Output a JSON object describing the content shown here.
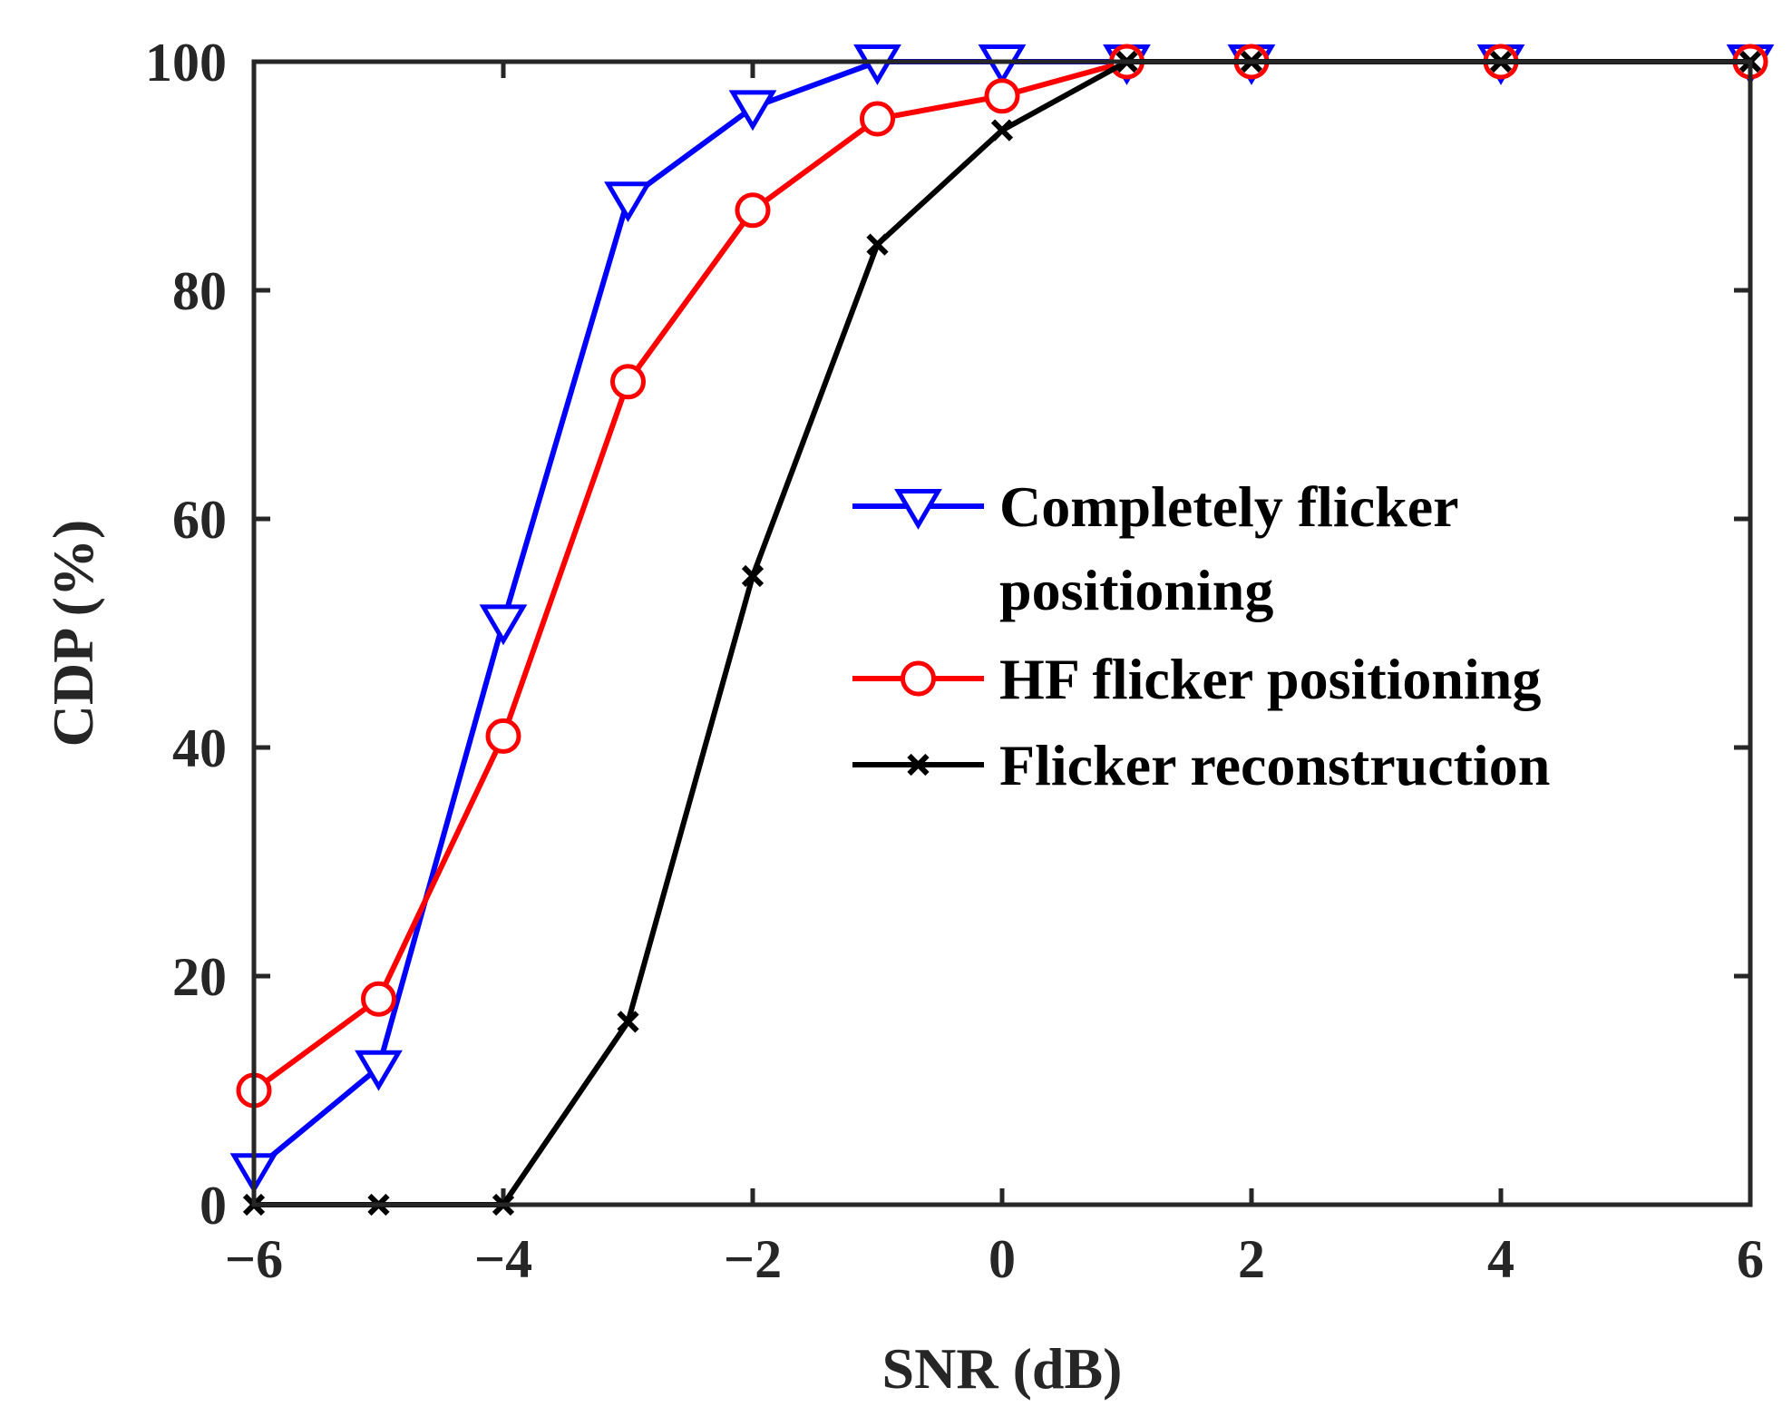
{
  "chart_data": {
    "type": "line",
    "xlabel": "SNR (dB)",
    "ylabel": "CDP (%)",
    "xlim": [
      -6,
      6
    ],
    "ylim": [
      0,
      100
    ],
    "xticks": [
      -6,
      -4,
      -2,
      0,
      2,
      4,
      6
    ],
    "xtick_labels": [
      "−6",
      "−4",
      "−2",
      "0",
      "2",
      "4",
      "6"
    ],
    "yticks": [
      0,
      20,
      40,
      60,
      80,
      100
    ],
    "ytick_labels": [
      "0",
      "20",
      "40",
      "60",
      "80",
      "100"
    ],
    "grid": false,
    "legend_position": "center-right",
    "series": [
      {
        "name_lines": [
          "Completely flicker",
          "positioning"
        ],
        "color": "#0000ff",
        "marker": "triangle-down",
        "x": [
          -6,
          -5,
          -4,
          -3,
          -2,
          -1,
          0,
          1,
          2,
          4,
          6
        ],
        "y": [
          3,
          12,
          51,
          88,
          96,
          100,
          100,
          100,
          100,
          100,
          100
        ]
      },
      {
        "name_lines": [
          "HF flicker positioning"
        ],
        "color": "#ff0000",
        "marker": "circle",
        "x": [
          -6,
          -5,
          -4,
          -3,
          -2,
          -1,
          0,
          1,
          2,
          4,
          6
        ],
        "y": [
          10,
          18,
          41,
          72,
          87,
          95,
          97,
          100,
          100,
          100,
          100
        ]
      },
      {
        "name_lines": [
          "Flicker reconstruction"
        ],
        "color": "#000000",
        "marker": "x",
        "x": [
          -6,
          -5,
          -4,
          -3,
          -2,
          -1,
          0,
          1,
          2,
          4,
          6
        ],
        "y": [
          0,
          0,
          0,
          16,
          55,
          84,
          94,
          100,
          100,
          100,
          100
        ]
      }
    ]
  }
}
